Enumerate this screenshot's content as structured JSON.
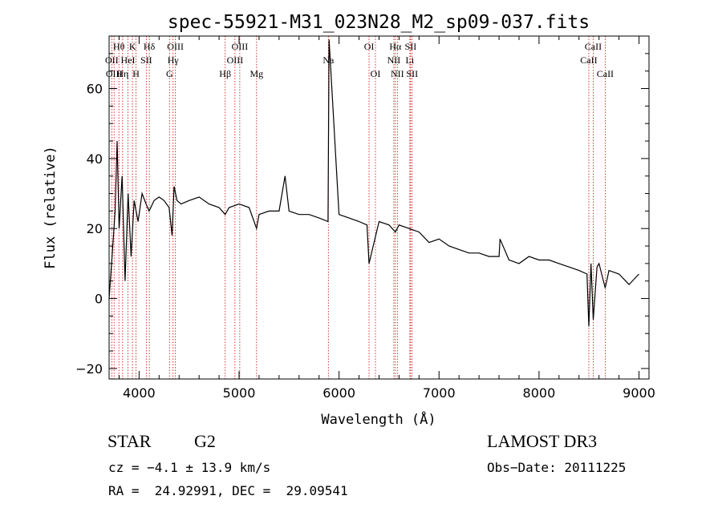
{
  "chart_data": {
    "type": "line",
    "title": "spec-55921-M31_023N28_M2_sp09-037.fits",
    "xlabel": "Wavelength (Å)",
    "ylabel": "Flux (relative)",
    "xlim": [
      3700,
      9100
    ],
    "ylim": [
      -23,
      75
    ],
    "xticks": [
      4000,
      5000,
      6000,
      7000,
      8000,
      9000
    ],
    "yticks": [
      -20,
      0,
      20,
      40,
      60
    ],
    "grid": false,
    "series": [
      {
        "name": "spectrum",
        "x": [
          3700,
          3730,
          3760,
          3780,
          3800,
          3830,
          3860,
          3890,
          3920,
          3950,
          3990,
          4030,
          4070,
          4100,
          4150,
          4200,
          4250,
          4300,
          4330,
          4350,
          4380,
          4420,
          4500,
          4600,
          4700,
          4800,
          4861,
          4900,
          5000,
          5100,
          5175,
          5200,
          5300,
          5400,
          5460,
          5500,
          5600,
          5700,
          5800,
          5890,
          5900,
          6000,
          6100,
          6200,
          6280,
          6300,
          6400,
          6500,
          6563,
          6600,
          6700,
          6800,
          6900,
          7000,
          7100,
          7200,
          7300,
          7400,
          7500,
          7600,
          7610,
          7700,
          7800,
          7900,
          8000,
          8100,
          8200,
          8300,
          8400,
          8480,
          8498,
          8520,
          8542,
          8580,
          8600,
          8662,
          8700,
          8800,
          8900,
          9000
        ],
        "y": [
          0,
          12,
          25,
          45,
          20,
          35,
          5,
          30,
          12,
          28,
          22,
          30,
          27,
          25,
          28,
          29,
          28,
          26,
          18,
          32,
          28,
          27,
          28,
          29,
          27,
          26,
          24,
          26,
          27,
          26,
          20,
          24,
          25,
          25,
          35,
          25,
          24,
          24,
          23,
          22,
          74,
          24,
          23,
          22,
          21,
          10,
          22,
          21,
          19,
          21,
          20,
          19,
          16,
          17,
          15,
          14,
          13,
          13,
          12,
          12,
          17,
          11,
          10,
          12,
          11,
          11,
          10,
          9,
          8,
          7,
          -8,
          10,
          -6,
          9,
          10,
          3,
          8,
          7,
          4,
          7
        ]
      }
    ],
    "lines": [
      {
        "name": "Hθ",
        "wavelength": 3798,
        "row": 1
      },
      {
        "name": "OII",
        "wavelength": 3727,
        "row": 2
      },
      {
        "name": "OIII",
        "wavelength": 3750,
        "row": 3
      },
      {
        "name": "K",
        "wavelength": 3934,
        "row": 1
      },
      {
        "name": "HeI",
        "wavelength": 3889,
        "row": 2
      },
      {
        "name": "Hη",
        "wavelength": 3835,
        "row": 3
      },
      {
        "name": "SII",
        "wavelength": 4072,
        "row": 2
      },
      {
        "name": "H",
        "wavelength": 3969,
        "row": 3
      },
      {
        "name": "Hδ",
        "wavelength": 4102,
        "row": 1
      },
      {
        "name": "OIII",
        "wavelength": 4363,
        "row": 1
      },
      {
        "name": "Hγ",
        "wavelength": 4340,
        "row": 2
      },
      {
        "name": "G",
        "wavelength": 4304,
        "row": 3
      },
      {
        "name": "OIII",
        "wavelength": 5007,
        "row": 1
      },
      {
        "name": "OIII",
        "wavelength": 4959,
        "row": 2
      },
      {
        "name": "Hβ",
        "wavelength": 4861,
        "row": 3
      },
      {
        "name": "Mg",
        "wavelength": 5175,
        "row": 3
      },
      {
        "name": "Na",
        "wavelength": 5893,
        "row": 2
      },
      {
        "name": "OI",
        "wavelength": 6300,
        "row": 1
      },
      {
        "name": "OI",
        "wavelength": 6364,
        "row": 3
      },
      {
        "name": "Hα",
        "wavelength": 6563,
        "row": 1
      },
      {
        "name": "NII",
        "wavelength": 6548,
        "row": 2
      },
      {
        "name": "NII",
        "wavelength": 6583,
        "row": 3
      },
      {
        "name": "SII",
        "wavelength": 6716,
        "row": 1
      },
      {
        "name": "Li",
        "wavelength": 6708,
        "row": 2
      },
      {
        "name": "SII",
        "wavelength": 6731,
        "row": 3
      },
      {
        "name": "CaII",
        "wavelength": 8498,
        "row": 2
      },
      {
        "name": "CaII",
        "wavelength": 8542,
        "row": 1
      },
      {
        "name": "CaII",
        "wavelength": 8662,
        "row": 3
      }
    ]
  },
  "info": {
    "class": "STAR",
    "subclass": "G2",
    "cz": "cz = −4.1 ± 13.9 km/s",
    "survey": "LAMOST DR3",
    "obs_date": "Obs−Date: 20111225",
    "radec": "RA =  24.92991, DEC =  29.09541"
  },
  "colors": {
    "line_marker": "#cc0000",
    "spectrum": "#000000",
    "axes": "#000000"
  }
}
